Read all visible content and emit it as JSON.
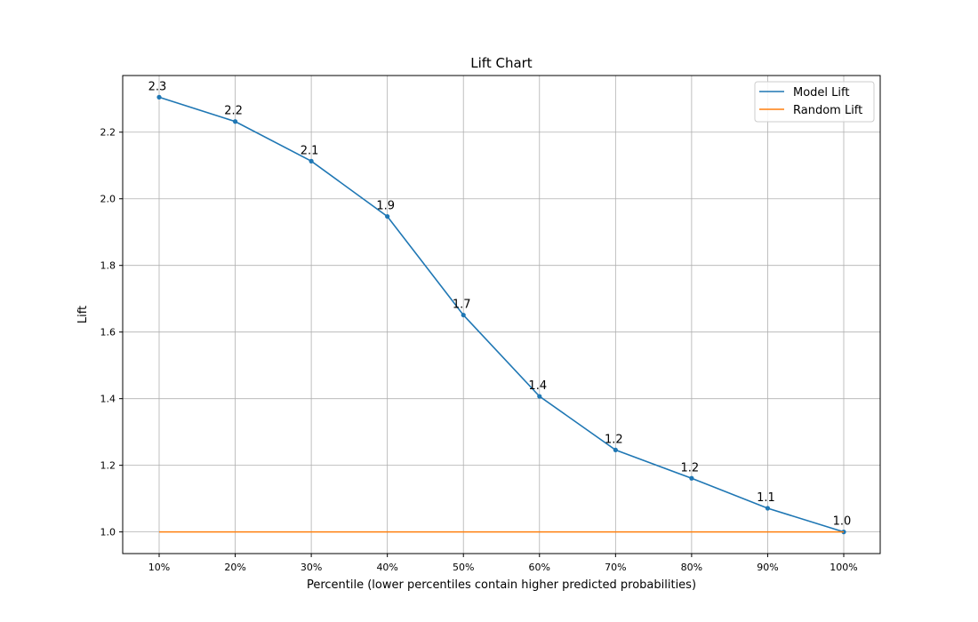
{
  "chart_data": {
    "type": "line",
    "title": "Lift Chart",
    "xlabel": "Percentile (lower percentiles contain higher predicted probabilities)",
    "ylabel": "Lift",
    "categories": [
      "10%",
      "20%",
      "30%",
      "40%",
      "50%",
      "60%",
      "70%",
      "80%",
      "90%",
      "100%"
    ],
    "ylim": [
      0.935,
      2.37
    ],
    "yticks": [
      "1.0",
      "1.2",
      "1.4",
      "1.6",
      "1.8",
      "2.0",
      "2.2"
    ],
    "grid": true,
    "legend_position": "top-right",
    "series": [
      {
        "name": "Model Lift",
        "color": "#1f77b4",
        "marker": "dot",
        "values": [
          2.305,
          2.232,
          2.113,
          1.947,
          1.651,
          1.407,
          1.246,
          1.161,
          1.071,
          1.0
        ],
        "labels": [
          "2.3",
          "2.2",
          "2.1",
          "1.9",
          "1.7",
          "1.4",
          "1.2",
          "1.2",
          "1.1",
          "1.0"
        ]
      },
      {
        "name": "Random Lift",
        "color": "#ff7f0e",
        "marker": "none",
        "values": [
          1.0,
          1.0,
          1.0,
          1.0,
          1.0,
          1.0,
          1.0,
          1.0,
          1.0,
          1.0
        ]
      }
    ]
  }
}
